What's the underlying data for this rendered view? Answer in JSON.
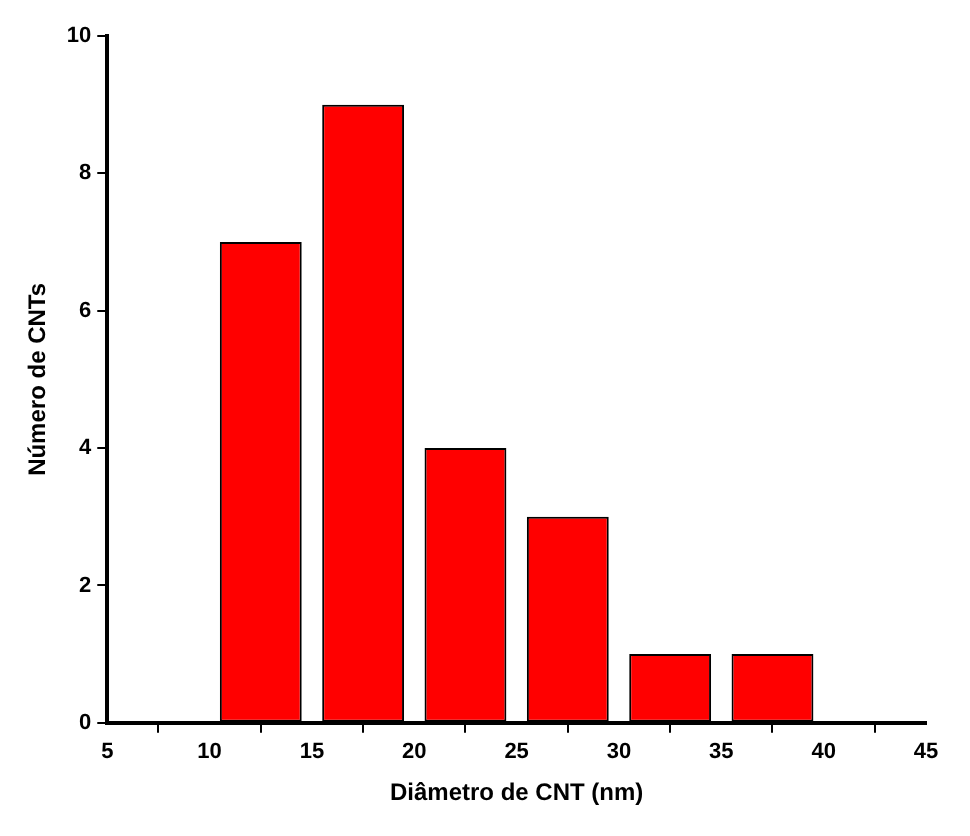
{
  "chart_data": {
    "type": "histogram",
    "xlabel": "Diâmetro de CNT (nm)",
    "ylabel": "Número de CNTs",
    "bins": [
      10,
      15,
      20,
      25,
      30,
      35,
      40
    ],
    "values": [
      7,
      9,
      4,
      3,
      1,
      1
    ],
    "color": "#ff0000",
    "xlim": [
      5,
      45
    ],
    "xticks": [
      5,
      10,
      15,
      20,
      25,
      30,
      35,
      40,
      45
    ],
    "ylim": [
      0,
      10
    ],
    "yticks": [
      0,
      2,
      4,
      6,
      8,
      10
    ],
    "grid": false,
    "legend": false
  }
}
